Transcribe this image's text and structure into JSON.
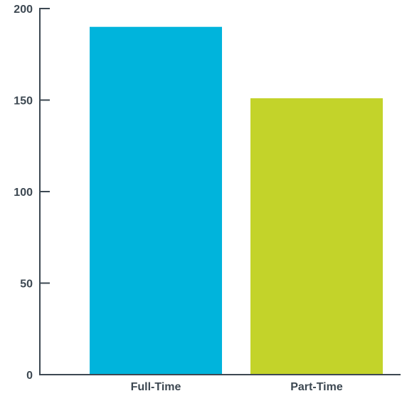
{
  "chart_data": {
    "type": "bar",
    "title": "",
    "xlabel": "",
    "ylabel": "",
    "categories": [
      "Full-Time",
      "Part-Time"
    ],
    "values": [
      190,
      151
    ],
    "colors": [
      "#00b4dc",
      "#c3d32a"
    ],
    "ylim": [
      0,
      200
    ],
    "yticks": [
      0,
      50,
      100,
      150,
      200
    ],
    "ytick_labels": [
      "0",
      "50",
      "100",
      "150",
      "200"
    ],
    "grid": false,
    "legend": "none",
    "axis_color": "#3d4852"
  }
}
